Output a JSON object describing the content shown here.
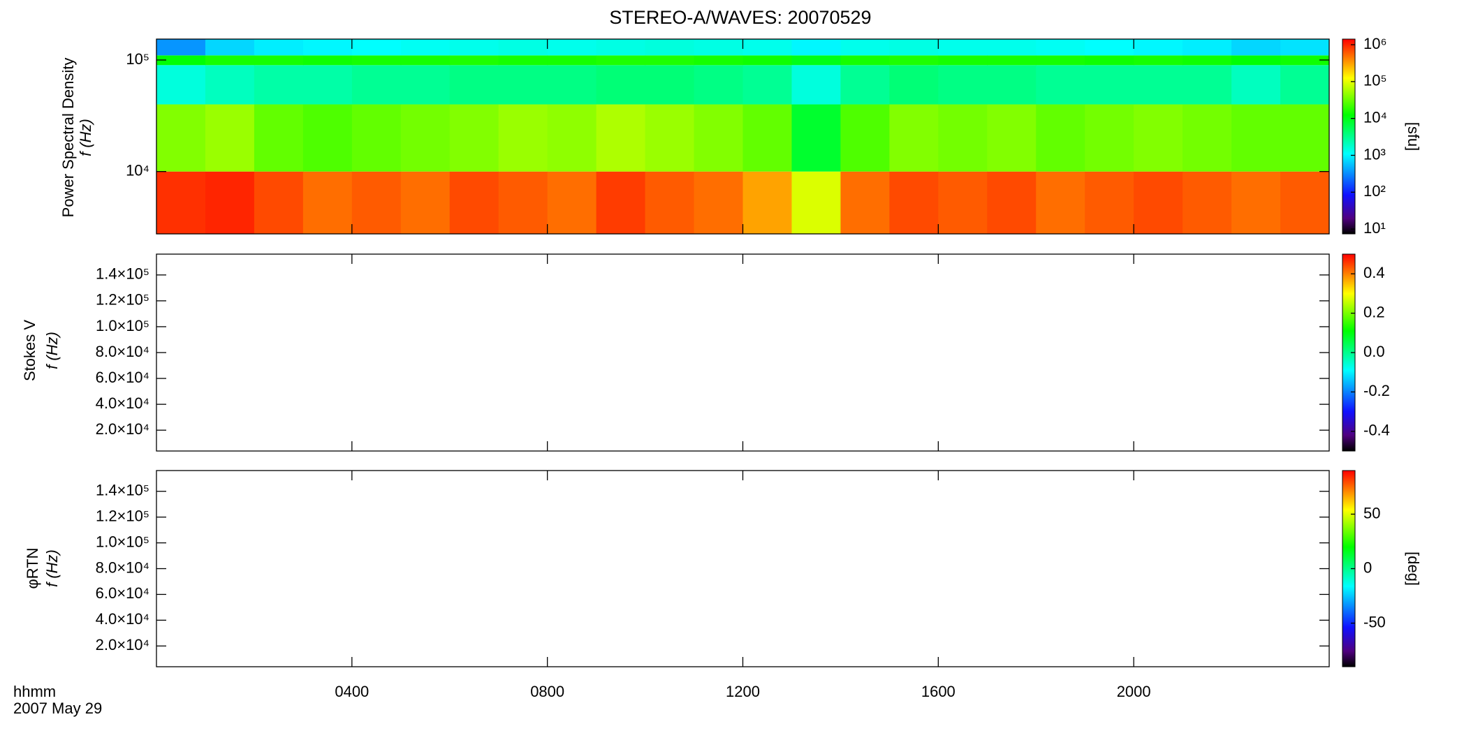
{
  "title": "STEREO-A/WAVES: 20070529",
  "time_axis": {
    "xlim": [
      0,
      24
    ],
    "xticks": [
      {
        "value": 4,
        "label": "0400"
      },
      {
        "value": 8,
        "label": "0800"
      },
      {
        "value": 12,
        "label": "1200"
      },
      {
        "value": 16,
        "label": "1600"
      },
      {
        "value": 20,
        "label": "2000"
      }
    ],
    "label": "hhmm",
    "date": "2007 May 29"
  },
  "chart_data": [
    {
      "type": "heatmap",
      "ylabel": "Power Spectral Density",
      "ylabel2": "f (Hz)",
      "ylog": true,
      "ylim": [
        2760,
        154000
      ],
      "yticks": [
        {
          "value": 10000,
          "label": "10⁴"
        },
        {
          "value": 100000,
          "label": "10⁵"
        }
      ],
      "x_edges": [
        0,
        1,
        2,
        3,
        4,
        5,
        6,
        7,
        8,
        9,
        10,
        11,
        12,
        13,
        14,
        15,
        16,
        17,
        18,
        19,
        20,
        21,
        22,
        23,
        24
      ],
      "y_edges": [
        2760,
        10000,
        40000,
        90000,
        110000,
        154000
      ],
      "z": [
        [
          900000,
          1000000,
          700000,
          500000,
          600000,
          500000,
          700000,
          600000,
          500000,
          800000,
          600000,
          500000,
          300000,
          90000,
          500000,
          700000,
          600000,
          700000,
          500000,
          600000,
          700000,
          600000,
          500000,
          600000
        ],
        [
          40000,
          50000,
          30000,
          25000,
          30000,
          35000,
          40000,
          50000,
          45000,
          60000,
          50000,
          40000,
          30000,
          8000,
          25000,
          40000,
          35000,
          40000,
          30000,
          35000,
          40000,
          35000,
          30000,
          30000
        ],
        [
          1500,
          2000,
          2500,
          2500,
          3000,
          3000,
          3500,
          3500,
          3500,
          4000,
          4000,
          3500,
          3000,
          1500,
          3000,
          4000,
          3500,
          3500,
          3000,
          3000,
          3000,
          3000,
          2000,
          3000
        ],
        [
          12000,
          15000,
          15000,
          14000,
          15000,
          15000,
          16000,
          15000,
          15000,
          16000,
          16000,
          15000,
          14000,
          10000,
          15000,
          16000,
          15000,
          15000,
          15000,
          14000,
          15000,
          14000,
          12000,
          14000
        ],
        [
          350,
          700,
          900,
          1000,
          1100,
          1200,
          1300,
          1400,
          1300,
          1400,
          1500,
          1400,
          1300,
          1000,
          1300,
          1400,
          1300,
          1300,
          1200,
          1100,
          1000,
          900,
          700,
          800
        ]
      ],
      "colorbar": {
        "zlog": true,
        "zlim": [
          7.4,
          1420000
        ],
        "zticks": [
          {
            "value": 10,
            "label": "10¹"
          },
          {
            "value": 100,
            "label": "10²"
          },
          {
            "value": 1000,
            "label": "10³"
          },
          {
            "value": 10000,
            "label": "10⁴"
          },
          {
            "value": 100000,
            "label": "10⁵"
          },
          {
            "value": 1000000,
            "label": "10⁶"
          }
        ],
        "label": "[sfu]"
      }
    },
    {
      "type": "heatmap",
      "ylabel": "Stokes V",
      "ylabel2": "f (Hz)",
      "ylog": false,
      "ylim": [
        3900,
        156100
      ],
      "yticks": [
        {
          "value": 20000,
          "label": "2.0×10⁴"
        },
        {
          "value": 40000,
          "label": "4.0×10⁴"
        },
        {
          "value": 60000,
          "label": "6.0×10⁴"
        },
        {
          "value": 80000,
          "label": "8.0×10⁴"
        },
        {
          "value": 100000,
          "label": "1.0×10⁵"
        },
        {
          "value": 120000,
          "label": "1.2×10⁵"
        },
        {
          "value": 140000,
          "label": "1.4×10⁵"
        }
      ],
      "colorbar": {
        "zlog": false,
        "zlim": [
          -0.5,
          0.5
        ],
        "zticks": [
          -0.4,
          -0.2,
          {
            "value": 0,
            "label": "0.0"
          },
          0.2,
          0.4
        ]
      }
    },
    {
      "type": "heatmap",
      "ylabel": "φRTN",
      "ylabel2": "f (Hz)",
      "ylog": false,
      "ylim": [
        3900,
        156100
      ],
      "yticks": [
        {
          "value": 20000,
          "label": "2.0×10⁴"
        },
        {
          "value": 40000,
          "label": "4.0×10⁴"
        },
        {
          "value": 60000,
          "label": "6.0×10⁴"
        },
        {
          "value": 80000,
          "label": "8.0×10⁴"
        },
        {
          "value": 100000,
          "label": "1.0×10⁵"
        },
        {
          "value": 120000,
          "label": "1.2×10⁵"
        },
        {
          "value": 140000,
          "label": "1.4×10⁵"
        }
      ],
      "colorbar": {
        "zlog": false,
        "zlim": [
          -90,
          90
        ],
        "zticks": [
          -50,
          0,
          50
        ],
        "label": "[deg]"
      }
    }
  ]
}
